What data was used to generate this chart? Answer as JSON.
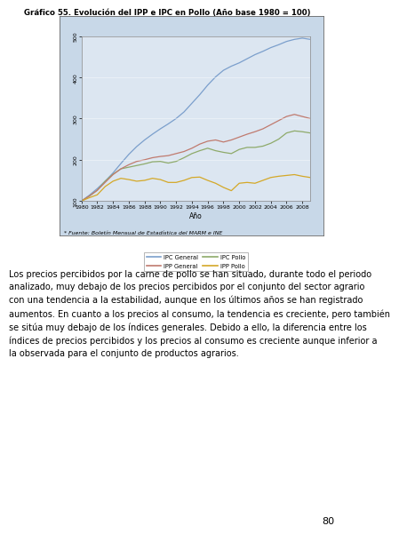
{
  "title": "Gráfico 55. Evolución del IPP e IPC en Pollo (Año base 1980 = 100)",
  "xlabel": "Año",
  "ylabel": "",
  "source": "* Fuente: Boletín Mensual de Estadística del MARM e INE",
  "xmin": 1980,
  "xmax": 2009,
  "ymin": 100,
  "ymax": 500,
  "yticks": [
    100,
    200,
    300,
    400,
    500
  ],
  "xticks": [
    1980,
    1982,
    1984,
    1986,
    1988,
    1990,
    1992,
    1994,
    1996,
    1998,
    2000,
    2002,
    2004,
    2006,
    2008
  ],
  "xtick_labels": [
    "1980",
    "1982",
    "1984",
    "1986",
    "1988",
    "1990",
    "1992",
    "1994",
    "1996",
    "1998",
    "2000",
    "2002",
    "2004",
    "2006",
    "2008"
  ],
  "series": {
    "IPC_General": {
      "color": "#7B9FCC",
      "label": "IPC General",
      "values": [
        100,
        114,
        130,
        148,
        168,
        191,
        213,
        232,
        248,
        262,
        275,
        287,
        300,
        316,
        337,
        358,
        381,
        401,
        417,
        427,
        435,
        445,
        455,
        463,
        472,
        479,
        487,
        492,
        495,
        492
      ]
    },
    "IPP_General": {
      "color": "#C07A6E",
      "label": "IPP General",
      "values": [
        100,
        112,
        126,
        145,
        164,
        178,
        188,
        196,
        200,
        205,
        208,
        210,
        215,
        220,
        228,
        238,
        245,
        248,
        243,
        248,
        255,
        262,
        268,
        275,
        285,
        295,
        305,
        310,
        305,
        300
      ]
    },
    "IPC_Pollo": {
      "color": "#8EAA6A",
      "label": "IPC Pollo",
      "values": [
        100,
        112,
        126,
        148,
        165,
        178,
        182,
        186,
        190,
        195,
        196,
        192,
        196,
        205,
        215,
        222,
        228,
        222,
        218,
        215,
        225,
        230,
        230,
        233,
        240,
        250,
        265,
        270,
        268,
        265
      ]
    },
    "IPP_Pollo": {
      "color": "#D4A827",
      "label": "IPP Pollo",
      "values": [
        100,
        108,
        115,
        135,
        148,
        155,
        152,
        148,
        150,
        155,
        152,
        145,
        145,
        150,
        157,
        158,
        150,
        143,
        133,
        125,
        143,
        145,
        143,
        150,
        157,
        160,
        162,
        164,
        160,
        157
      ]
    }
  },
  "background_color": "#DCE6F1",
  "outer_box_color": "#C8D8E8",
  "text_body": "Los precios percibidos por la carne de pollo se han situado, durante todo el periodo analizado, muy debajo de los precios percibidos por el conjunto del sector agrario con una tendencia a la estabilidad, aunque en los últimos años se han registrado aumentos. En cuanto a los precios al consumo, la tendencia es creciente, pero también se sitúa muy debajo de los índices generales. Debido a ello, la diferencia entre los índices de precios percibidos y los precios al consumo es creciente aunque inferior a la observada para el conjunto de productos agrarios.",
  "page_number": "80"
}
